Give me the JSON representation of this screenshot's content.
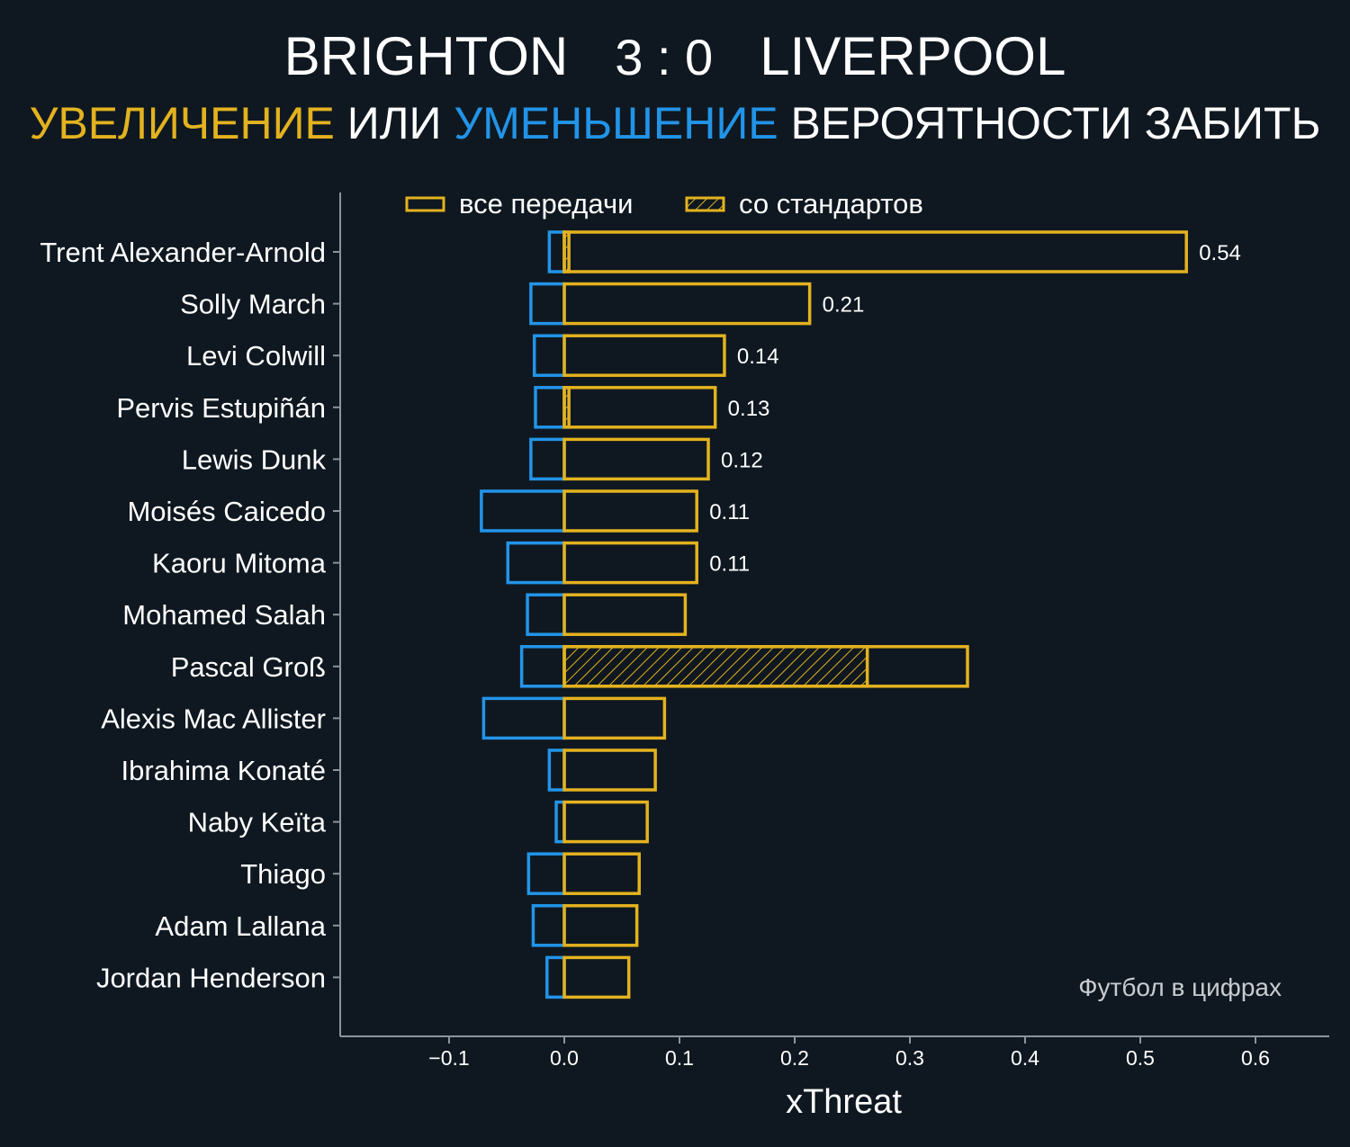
{
  "header": {
    "home_team": "BRIGHTON",
    "score": "3 : 0",
    "away_team": "LIVERPOOL",
    "subtitle_increase": "УВЕЛИЧЕНИЕ",
    "subtitle_or": "ИЛИ",
    "subtitle_decrease": "УМЕНЬШЕНИЕ",
    "subtitle_rest": "ВЕРОЯТНОСТИ ЗАБИТЬ"
  },
  "colors": {
    "background": "#0f1820",
    "increase": "#e3b21f",
    "decrease": "#2294e8",
    "text": "#ffffff",
    "axis": "#8a949c",
    "watermark": "#c8ccd0"
  },
  "watermark": "Футбол в цифрах",
  "chart_data": {
    "type": "bar",
    "orientation": "horizontal",
    "xlabel": "xThreat",
    "xlim": [
      -0.195,
      0.66
    ],
    "xticks": [
      -0.1,
      0.0,
      0.1,
      0.2,
      0.3,
      0.4,
      0.5,
      0.6
    ],
    "xtick_labels": [
      "−0.1",
      "0.0",
      "0.1",
      "0.2",
      "0.3",
      "0.4",
      "0.5",
      "0.6"
    ],
    "legend": {
      "position": "top",
      "entries": [
        {
          "label": "все передачи",
          "style": "outline"
        },
        {
          "label": "со стандартов",
          "style": "hatched"
        }
      ]
    },
    "categories": [
      "Trent Alexander-Arnold",
      "Solly March",
      "Levi Colwill",
      "Pervis Estupiñán",
      "Lewis Dunk",
      "Moisés Caicedo",
      "Kaoru Mitoma",
      "Mohamed Salah",
      "Pascal Groß",
      "Alexis Mac Allister",
      "Ibrahima Konaté",
      "Naby Keïta",
      "Thiago",
      "Adam Lallana",
      "Jordan Henderson"
    ],
    "series": [
      {
        "key": "increase_all",
        "values": [
          0.54,
          0.213,
          0.139,
          0.131,
          0.125,
          0.115,
          0.115,
          0.105,
          0.35,
          0.087,
          0.079,
          0.072,
          0.065,
          0.063,
          0.056
        ]
      },
      {
        "key": "decrease_all",
        "values": [
          -0.013,
          -0.029,
          -0.026,
          -0.025,
          -0.029,
          -0.072,
          -0.049,
          -0.032,
          -0.037,
          -0.07,
          -0.013,
          -0.007,
          -0.031,
          -0.027,
          -0.015
        ]
      },
      {
        "key": "increase_set_pieces",
        "values": [
          0.004,
          0.0,
          0.0,
          0.004,
          0.0,
          0.0,
          0.0,
          0.0,
          0.263,
          0.0,
          0.0,
          0.0,
          0.0,
          0.0,
          0.0
        ]
      }
    ],
    "data_labels": [
      "0.54",
      "0.21",
      "0.14",
      "0.13",
      "0.12",
      "0.11",
      "0.11",
      "",
      "",
      "",
      "",
      "",
      "",
      "",
      ""
    ]
  }
}
